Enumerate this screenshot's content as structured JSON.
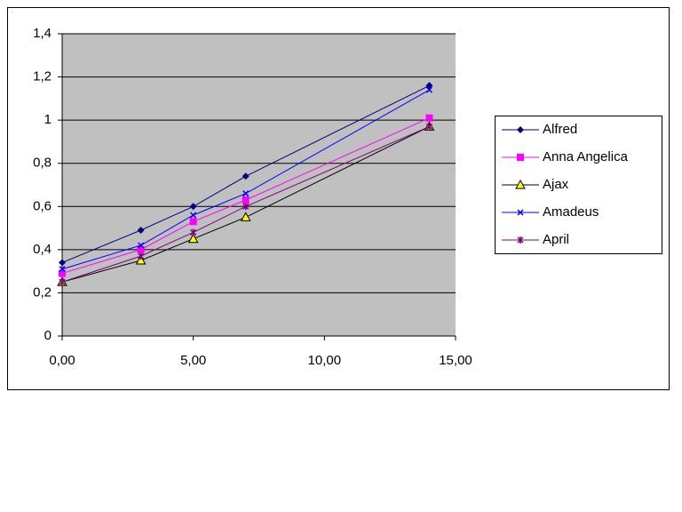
{
  "chart_data": {
    "type": "line",
    "x": [
      0,
      3,
      5,
      7,
      14
    ],
    "series": [
      {
        "name": "Alfred",
        "color": "#000080",
        "marker": "diamond",
        "values": [
          0.34,
          0.49,
          0.6,
          0.74,
          1.16
        ]
      },
      {
        "name": "Anna Angelica",
        "color": "#ff00ff",
        "marker": "square",
        "values": [
          0.29,
          0.4,
          0.53,
          0.63,
          1.01
        ]
      },
      {
        "name": "Ajax",
        "color": "#000000",
        "marker": "triangle",
        "marker_color": "#ffff00",
        "values": [
          0.25,
          0.35,
          0.45,
          0.55,
          0.97
        ]
      },
      {
        "name": "Amadeus",
        "color": "#0000ff",
        "marker": "x",
        "values": [
          0.31,
          0.42,
          0.56,
          0.66,
          1.14
        ]
      },
      {
        "name": "April",
        "color": "#800080",
        "marker": "star",
        "values": [
          0.25,
          0.37,
          0.48,
          0.6,
          0.97
        ]
      }
    ],
    "xlim": [
      0,
      15
    ],
    "xticks": [
      {
        "value": 0,
        "label": "0,00"
      },
      {
        "value": 5,
        "label": "5,00"
      },
      {
        "value": 10,
        "label": "10,00"
      },
      {
        "value": 15,
        "label": "15,00"
      }
    ],
    "ylim": [
      0,
      1.4
    ],
    "yticks": [
      0,
      {
        "value": 0.2,
        "label": "0,2"
      },
      {
        "value": 0.4,
        "label": "0,4"
      },
      {
        "value": 0.6,
        "label": "0,6"
      },
      {
        "value": 0.8,
        "label": "0,8"
      },
      1,
      {
        "value": 1.2,
        "label": "1,2"
      },
      {
        "value": 1.4,
        "label": "1,4"
      }
    ],
    "grid": true,
    "plot_background": "#c0c0c0",
    "legend": "right"
  }
}
